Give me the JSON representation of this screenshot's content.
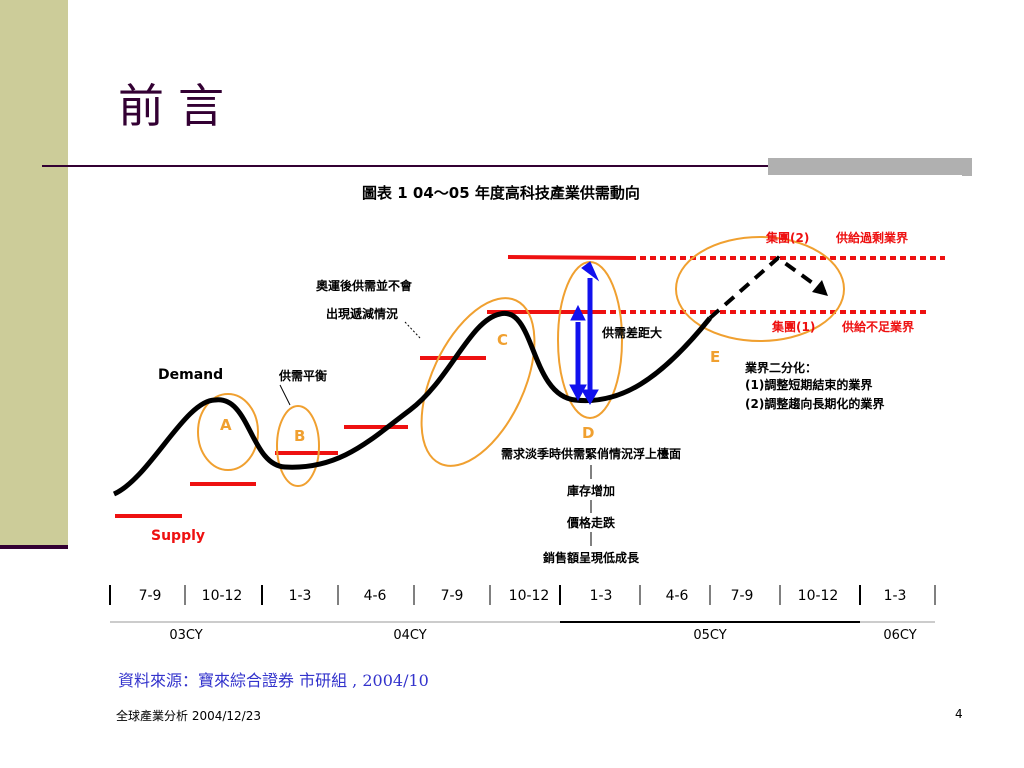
{
  "slide": {
    "title": "前言",
    "source": "資料來源：寶來綜合證券 市研組 , 2004/10",
    "footer_left": "全球產業分析  2004/12/23",
    "page_number": "4"
  },
  "diagram": {
    "title": "圖表 1 04～05 年度高科技產業供需動向",
    "demand_label": "Demand",
    "supply_label": "Supply",
    "points": [
      "A",
      "B",
      "C",
      "D",
      "E"
    ],
    "balance_label": "供需平衡",
    "olympics_note": [
      "奧運後供需並不會",
      "出現遞減情況"
    ],
    "gap_label": "供需差距大",
    "group2": "集團(2)",
    "group2_desc": "供給過剩業界",
    "group1": "集團(1)",
    "group1_desc": "供給不足業界",
    "split_notes": [
      "業界二分化：",
      "(1)調整短期結束的業界",
      "(2)調整趨向長期化的業界"
    ],
    "chain": [
      "需求淡季時供需緊俏情況浮上檯面",
      "庫存增加",
      "價格走跌",
      "銷售額呈現低成長"
    ],
    "quarters": [
      "7-9",
      "10-12",
      "1-3",
      "4-6",
      "7-9",
      "10-12",
      "1-3",
      "4-6",
      "7-9",
      "10-12",
      "1-3"
    ],
    "years": [
      "03CY",
      "04CY",
      "05CY",
      "06CY"
    ],
    "colors": {
      "supply": "#ee1111",
      "demand": "#000000",
      "ellipse": "#f0a030",
      "gap": "#1111ee",
      "title": "#330033"
    }
  }
}
